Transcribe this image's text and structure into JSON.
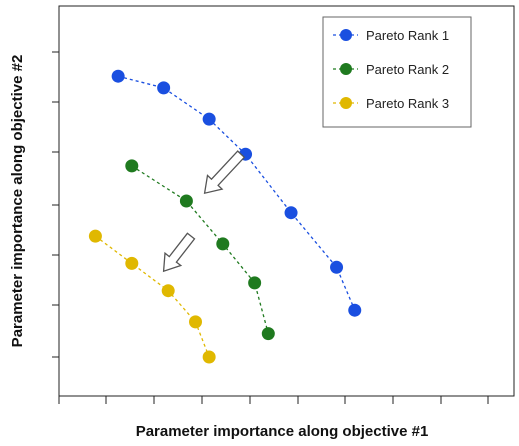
{
  "chart_data": {
    "type": "scatter",
    "xlabel": "Parameter importance along objective #1",
    "ylabel": "Parameter importance along objective #2",
    "xlim": [
      0,
      10
    ],
    "ylim": [
      0,
      10
    ],
    "grid": false,
    "legend_position": "top-right",
    "series": [
      {
        "name": "Pareto Rank 1",
        "color": "#1a4fe0",
        "line_style": "dashed",
        "x": [
          1.3,
          2.3,
          3.3,
          4.1,
          5.1,
          6.1,
          6.5
        ],
        "y": [
          8.2,
          7.9,
          7.1,
          6.2,
          4.7,
          3.3,
          2.2
        ]
      },
      {
        "name": "Pareto Rank 2",
        "color": "#1f7a1f",
        "line_style": "dashed",
        "x": [
          1.6,
          2.8,
          3.6,
          4.3,
          4.6
        ],
        "y": [
          5.9,
          5.0,
          3.9,
          2.9,
          1.6
        ]
      },
      {
        "name": "Pareto Rank 3",
        "color": "#e0b800",
        "line_style": "dashed",
        "x": [
          0.8,
          1.6,
          2.4,
          3.0,
          3.3
        ],
        "y": [
          4.1,
          3.4,
          2.7,
          1.9,
          1.0
        ]
      }
    ],
    "annotations": [
      {
        "type": "arrow",
        "from": [
          4.0,
          6.2
        ],
        "to": [
          3.2,
          5.2
        ]
      },
      {
        "type": "arrow",
        "from": [
          2.9,
          4.1
        ],
        "to": [
          2.3,
          3.2
        ]
      }
    ]
  }
}
